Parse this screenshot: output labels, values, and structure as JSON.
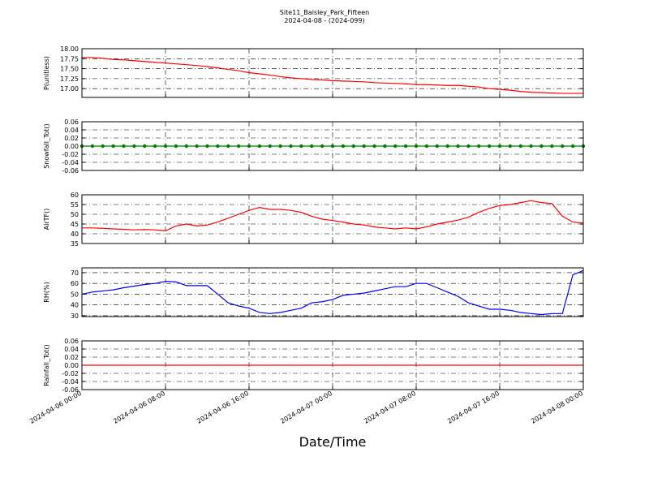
{
  "title": "Site11_Baisley_Park_Fifteen",
  "subtitle": "2024-04-08 - (2024-099)",
  "xlabel": "Date/Time",
  "xlim": [
    "2024-04-06 00:00",
    "2024-04-08 00:00"
  ],
  "xticks": [
    "2024-04-06 00:00",
    "2024-04-06 08:00",
    "2024-04-06 16:00",
    "2024-04-07 00:00",
    "2024-04-07 08:00",
    "2024-04-07 16:00",
    "2024-04-08 00:00"
  ],
  "grid": true,
  "x": [
    "2024-04-06 00:00",
    "2024-04-06 01:00",
    "2024-04-06 02:00",
    "2024-04-06 03:00",
    "2024-04-06 04:00",
    "2024-04-06 05:00",
    "2024-04-06 06:00",
    "2024-04-06 07:00",
    "2024-04-06 08:00",
    "2024-04-06 09:00",
    "2024-04-06 10:00",
    "2024-04-06 11:00",
    "2024-04-06 12:00",
    "2024-04-06 13:00",
    "2024-04-06 14:00",
    "2024-04-06 15:00",
    "2024-04-06 16:00",
    "2024-04-06 17:00",
    "2024-04-06 18:00",
    "2024-04-06 19:00",
    "2024-04-06 20:00",
    "2024-04-06 21:00",
    "2024-04-06 22:00",
    "2024-04-06 23:00",
    "2024-04-07 00:00",
    "2024-04-07 01:00",
    "2024-04-07 02:00",
    "2024-04-07 03:00",
    "2024-04-07 04:00",
    "2024-04-07 05:00",
    "2024-04-07 06:00",
    "2024-04-07 07:00",
    "2024-04-07 08:00",
    "2024-04-07 09:00",
    "2024-04-07 10:00",
    "2024-04-07 11:00",
    "2024-04-07 12:00",
    "2024-04-07 13:00",
    "2024-04-07 14:00",
    "2024-04-07 15:00",
    "2024-04-07 16:00",
    "2024-04-07 17:00",
    "2024-04-07 18:00",
    "2024-04-07 19:00",
    "2024-04-07 20:00",
    "2024-04-07 21:00",
    "2024-04-07 22:00",
    "2024-04-07 23:00",
    "2024-04-08 00:00"
  ],
  "chart_data": [
    {
      "type": "line",
      "ylabel": "P(unitless)",
      "ylim": [
        16.78,
        18.0
      ],
      "yticks": [
        {
          "value": 17.0,
          "label": "17.00"
        },
        17.25,
        {
          "value": 17.5,
          "label": "17.50"
        },
        17.75,
        {
          "value": 18.0,
          "label": "18.00"
        }
      ],
      "series": [
        {
          "color": "#ff0000",
          "values": [
            17.78,
            17.78,
            17.76,
            17.73,
            17.72,
            17.7,
            17.68,
            17.66,
            17.64,
            17.62,
            17.6,
            17.58,
            17.55,
            17.52,
            17.48,
            17.45,
            17.4,
            17.37,
            17.34,
            17.3,
            17.27,
            17.25,
            17.23,
            17.22,
            17.2,
            17.19,
            17.18,
            17.17,
            17.15,
            17.14,
            17.13,
            17.12,
            17.1,
            17.1,
            17.09,
            17.08,
            17.08,
            17.06,
            17.04,
            17.0,
            16.98,
            16.96,
            16.93,
            16.91,
            16.9,
            16.89,
            16.88,
            16.88,
            16.88
          ]
        }
      ]
    },
    {
      "type": "line",
      "ylabel": "Snowfall_Tot()",
      "ylim": [
        -0.06,
        0.06
      ],
      "yticks": [
        -0.06,
        -0.04,
        -0.02,
        {
          "value": 0,
          "label": "0.00"
        },
        0.02,
        0.04,
        0.06
      ],
      "series": [
        {
          "color": "#008000",
          "marker": true,
          "values": [
            0,
            0,
            0,
            0,
            0,
            0,
            0,
            0,
            0,
            0,
            0,
            0,
            0,
            0,
            0,
            0,
            0,
            0,
            0,
            0,
            0,
            0,
            0,
            0,
            0,
            0,
            0,
            0,
            0,
            0,
            0,
            0,
            0,
            0,
            0,
            0,
            0,
            0,
            0,
            0,
            0,
            0,
            0,
            0,
            0,
            0,
            0,
            0,
            0
          ]
        }
      ]
    },
    {
      "type": "line",
      "ylabel": "AirTF()",
      "ylim": [
        35,
        60
      ],
      "yticks": [
        35,
        40,
        45,
        50,
        55,
        60
      ],
      "series": [
        {
          "color": "#ff0000",
          "values": [
            43,
            43,
            42.8,
            42.5,
            42.3,
            42,
            42.2,
            42,
            41.5,
            44,
            45,
            44,
            44.5,
            46,
            48,
            50,
            52,
            53.5,
            52.5,
            52.5,
            52,
            51,
            49,
            47.5,
            46.8,
            46,
            45,
            44.5,
            43.5,
            43,
            42.5,
            43,
            42.5,
            43.5,
            45,
            46,
            47,
            48.5,
            51,
            53,
            54.5,
            55,
            56,
            57,
            56,
            55.5,
            49,
            46,
            45.5
          ]
        }
      ]
    },
    {
      "type": "line",
      "ylabel": "RH(%)",
      "ylim": [
        29.2,
        74.5
      ],
      "yticks": [
        30,
        40,
        50,
        60,
        70
      ],
      "series": [
        {
          "color": "#0000ff",
          "values": [
            50,
            52,
            53,
            54,
            56,
            57.5,
            59,
            60,
            62,
            61.5,
            58,
            58,
            58,
            50,
            42,
            39,
            37,
            33,
            32,
            33,
            35,
            37,
            42,
            43,
            45,
            49,
            50,
            51,
            53,
            55,
            57,
            57,
            60,
            60,
            56,
            52,
            48,
            42,
            39,
            36,
            36,
            35,
            33,
            32,
            31,
            32,
            32,
            68,
            72
          ]
        }
      ]
    },
    {
      "type": "line",
      "ylabel": "Rainfall_Tot()",
      "ylim": [
        -0.06,
        0.06
      ],
      "yticks": [
        -0.06,
        -0.04,
        -0.02,
        {
          "value": 0,
          "label": "0.00"
        },
        0.02,
        0.04,
        0.06
      ],
      "series": [
        {
          "color": "#ff0000",
          "values": [
            0,
            0,
            0,
            0,
            0,
            0,
            0,
            0,
            0,
            0,
            0,
            0,
            0,
            0,
            0,
            0,
            0,
            0,
            0,
            0,
            0,
            0,
            0,
            0,
            0,
            0,
            0,
            0,
            0,
            0,
            0,
            0,
            0,
            0,
            0,
            0,
            0,
            0,
            0,
            0,
            0,
            0,
            0,
            0,
            0,
            0,
            0,
            0,
            0
          ]
        }
      ]
    }
  ]
}
